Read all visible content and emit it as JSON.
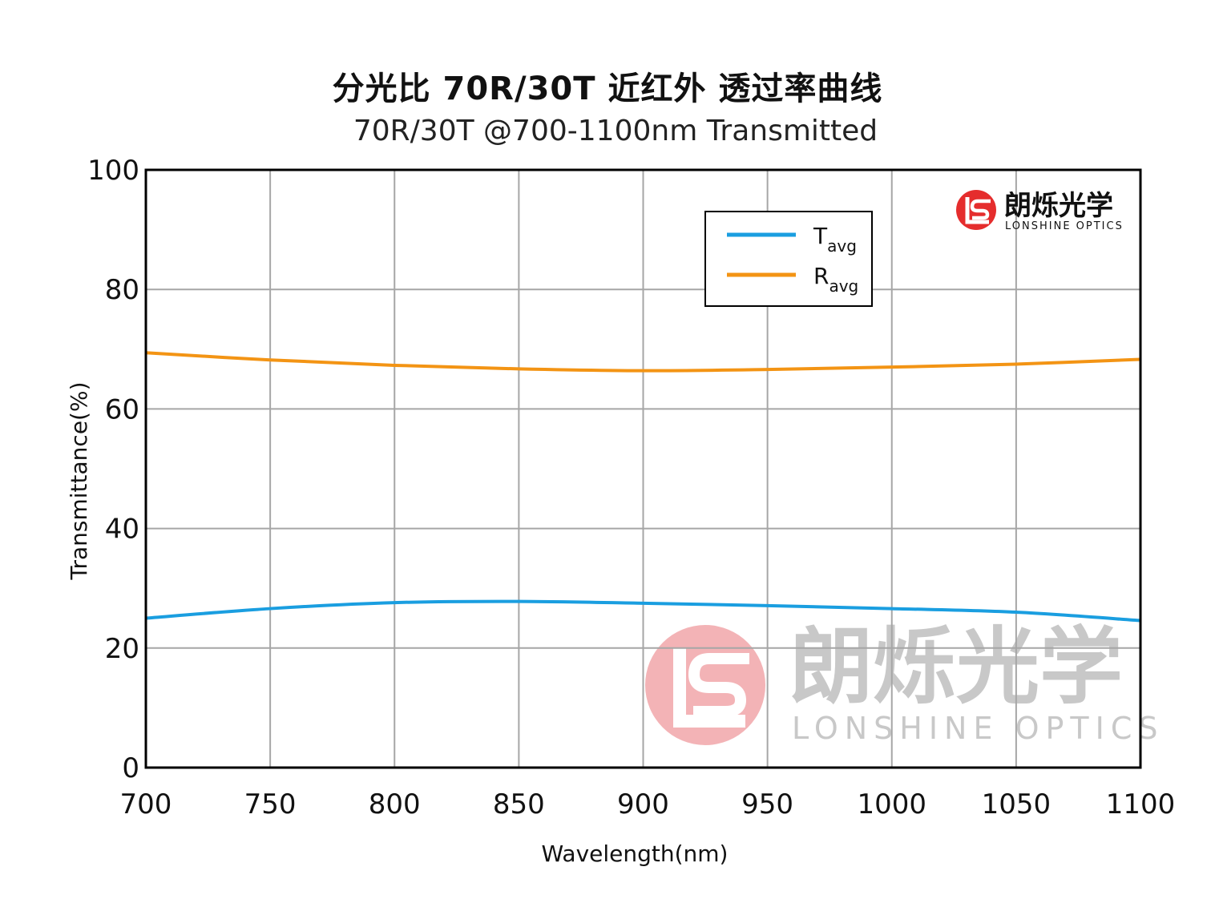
{
  "chart_data": {
    "type": "line",
    "title": "分光比 70R/30T 近红外 透过率曲线",
    "subtitle": "70R/30T @700-1100nm  Transmitted",
    "xlabel": "Wavelength(nm)",
    "ylabel": "Transmittance(%)",
    "xlim": [
      700,
      1100
    ],
    "ylim": [
      0,
      100
    ],
    "xticks": [
      700,
      750,
      800,
      850,
      900,
      950,
      1000,
      1050,
      1100
    ],
    "yticks": [
      0,
      20,
      40,
      60,
      80,
      100
    ],
    "grid": true,
    "legend_position": "top-right",
    "series": [
      {
        "name": "T",
        "name_sub": "avg",
        "color": "#1a9ee0",
        "x": [
          700,
          750,
          800,
          850,
          900,
          950,
          1000,
          1050,
          1100
        ],
        "y": [
          25.0,
          26.6,
          27.6,
          27.8,
          27.5,
          27.1,
          26.6,
          26.0,
          24.6
        ]
      },
      {
        "name": "R",
        "name_sub": "avg",
        "color": "#f39414",
        "x": [
          700,
          750,
          800,
          850,
          900,
          950,
          1000,
          1050,
          1100
        ],
        "y": [
          69.4,
          68.2,
          67.3,
          66.7,
          66.4,
          66.6,
          67.0,
          67.5,
          68.3
        ]
      }
    ]
  },
  "branding": {
    "logo_cn": "朗烁光学",
    "logo_en": "LONSHINE OPTICS",
    "logo_color": "#e52d2d",
    "watermark_cn": "朗烁光学",
    "watermark_en": "LONSHINE OPTICS"
  }
}
